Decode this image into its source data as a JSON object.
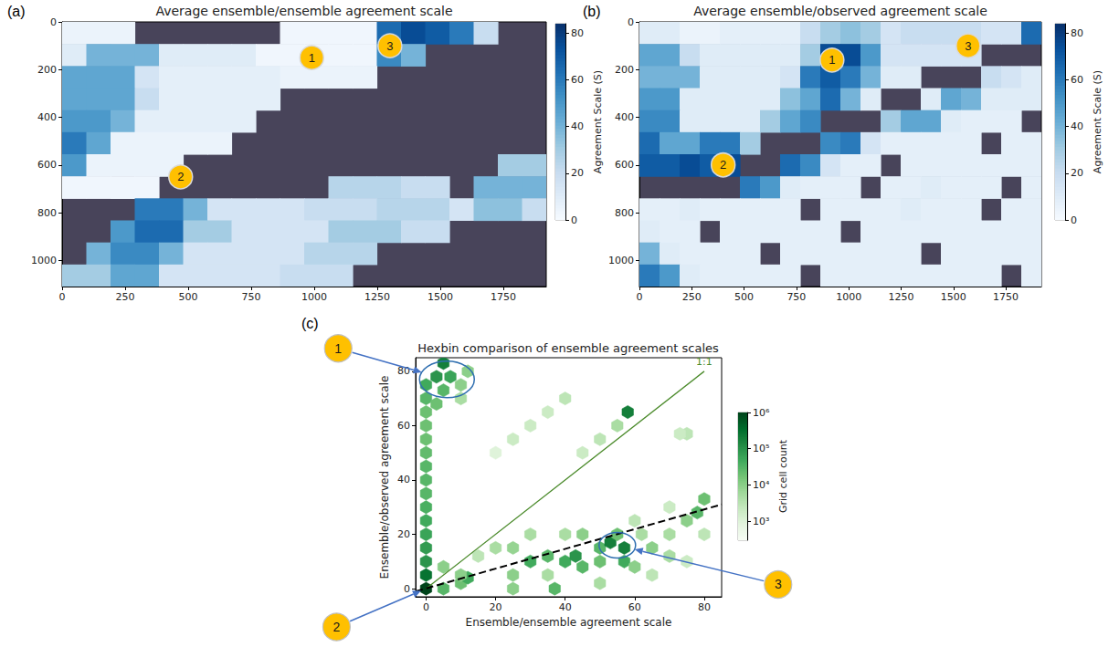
{
  "chart_data": [
    {
      "type": "heatmap",
      "label": "(a)",
      "title": "Average ensemble/ensemble agreement scale",
      "xlim": [
        0,
        1920
      ],
      "ylim": [
        1110,
        0
      ],
      "xticks": [
        0,
        250,
        500,
        750,
        1000,
        1250,
        1500,
        1750
      ],
      "yticks": [
        0,
        200,
        400,
        600,
        800,
        1000
      ],
      "grid": false,
      "cells": [
        [
          5,
          5,
          5,
          null,
          null,
          null,
          null,
          null,
          null,
          3,
          3,
          3,
          3,
          65,
          75,
          70,
          60,
          20,
          null,
          null
        ],
        [
          10,
          40,
          40,
          40,
          10,
          10,
          10,
          10,
          3,
          3,
          3,
          3,
          3,
          55,
          40,
          null,
          null,
          null,
          null,
          null
        ],
        [
          45,
          45,
          45,
          15,
          8,
          8,
          8,
          8,
          8,
          5,
          5,
          5,
          5,
          null,
          null,
          null,
          null,
          null,
          null,
          null
        ],
        [
          45,
          45,
          45,
          20,
          8,
          8,
          8,
          8,
          8,
          null,
          null,
          null,
          null,
          null,
          null,
          null,
          null,
          null,
          null,
          null
        ],
        [
          50,
          50,
          40,
          8,
          8,
          8,
          8,
          8,
          null,
          null,
          null,
          null,
          null,
          null,
          null,
          null,
          null,
          null,
          null,
          null
        ],
        [
          60,
          45,
          5,
          5,
          5,
          5,
          5,
          null,
          null,
          null,
          null,
          null,
          null,
          null,
          null,
          null,
          null,
          null,
          null,
          null
        ],
        [
          50,
          5,
          5,
          5,
          5,
          null,
          null,
          null,
          null,
          null,
          null,
          null,
          null,
          null,
          null,
          null,
          null,
          null,
          30,
          30
        ],
        [
          3,
          3,
          3,
          3,
          null,
          null,
          null,
          null,
          null,
          null,
          null,
          25,
          25,
          25,
          20,
          20,
          null,
          40,
          40,
          40
        ],
        [
          null,
          null,
          null,
          60,
          60,
          40,
          15,
          15,
          15,
          15,
          20,
          20,
          20,
          25,
          25,
          25,
          15,
          35,
          35,
          20
        ],
        [
          null,
          null,
          50,
          65,
          65,
          30,
          30,
          15,
          15,
          15,
          15,
          30,
          30,
          30,
          20,
          20,
          null,
          null,
          null,
          null
        ],
        [
          null,
          40,
          55,
          55,
          40,
          15,
          15,
          15,
          15,
          15,
          25,
          25,
          25,
          null,
          null,
          null,
          null,
          null,
          null,
          null
        ],
        [
          30,
          30,
          45,
          45,
          15,
          15,
          15,
          15,
          15,
          20,
          20,
          20,
          null,
          null,
          null,
          null,
          null,
          null,
          null,
          null
        ]
      ],
      "colorbar": {
        "label": "Agreement Scale (S)",
        "lim": [
          0,
          84
        ],
        "ticks": [
          0,
          20,
          40,
          60,
          80
        ]
      },
      "annotations": [
        {
          "text": "1",
          "x": 990,
          "y": 150
        },
        {
          "text": "2",
          "x": 470,
          "y": 650
        },
        {
          "text": "3",
          "x": 1300,
          "y": 100
        }
      ]
    },
    {
      "type": "heatmap",
      "label": "(b)",
      "title": "Average ensemble/observed agreement scale",
      "xlim": [
        0,
        1920
      ],
      "ylim": [
        1110,
        0
      ],
      "xticks": [
        0,
        250,
        500,
        750,
        1000,
        1250,
        1500,
        1750
      ],
      "yticks": [
        0,
        200,
        400,
        600,
        800,
        1000
      ],
      "grid": false,
      "cells": [
        [
          10,
          10,
          5,
          5,
          8,
          8,
          8,
          8,
          20,
          30,
          35,
          30,
          15,
          20,
          20,
          20,
          20,
          15,
          15,
          65
        ],
        [
          45,
          45,
          20,
          10,
          10,
          10,
          10,
          10,
          30,
          75,
          75,
          50,
          15,
          15,
          15,
          15,
          15,
          null,
          null,
          null
        ],
        [
          40,
          40,
          40,
          10,
          10,
          10,
          10,
          15,
          60,
          70,
          60,
          40,
          10,
          10,
          null,
          null,
          null,
          20,
          15,
          10
        ],
        [
          50,
          50,
          10,
          10,
          10,
          10,
          10,
          35,
          45,
          65,
          40,
          10,
          null,
          null,
          10,
          45,
          40,
          10,
          10,
          10
        ],
        [
          55,
          55,
          10,
          10,
          10,
          10,
          30,
          45,
          55,
          null,
          null,
          null,
          30,
          45,
          45,
          10,
          8,
          8,
          8,
          null
        ],
        [
          65,
          45,
          45,
          60,
          60,
          30,
          null,
          null,
          null,
          55,
          60,
          15,
          8,
          8,
          8,
          8,
          8,
          null,
          8,
          8
        ],
        [
          70,
          70,
          75,
          70,
          75,
          null,
          null,
          65,
          55,
          15,
          8,
          8,
          null,
          8,
          8,
          8,
          8,
          8,
          8,
          8
        ],
        [
          null,
          null,
          null,
          null,
          null,
          60,
          50,
          10,
          8,
          8,
          8,
          null,
          8,
          8,
          10,
          8,
          8,
          8,
          null,
          8
        ],
        [
          8,
          8,
          10,
          8,
          8,
          8,
          8,
          8,
          null,
          8,
          8,
          8,
          8,
          10,
          8,
          8,
          8,
          null,
          8,
          8
        ],
        [
          10,
          8,
          8,
          null,
          8,
          8,
          8,
          8,
          8,
          8,
          null,
          8,
          8,
          8,
          8,
          8,
          8,
          8,
          8,
          8
        ],
        [
          40,
          10,
          8,
          8,
          8,
          8,
          null,
          8,
          8,
          8,
          8,
          8,
          8,
          8,
          null,
          8,
          8,
          8,
          8,
          8
        ],
        [
          60,
          50,
          10,
          8,
          8,
          8,
          8,
          8,
          null,
          8,
          8,
          8,
          8,
          8,
          8,
          8,
          8,
          8,
          null,
          8
        ]
      ],
      "colorbar": {
        "label": "Agreement Scale (S)",
        "lim": [
          0,
          84
        ],
        "ticks": [
          0,
          20,
          40,
          60,
          80
        ]
      },
      "annotations": [
        {
          "text": "1",
          "x": 920,
          "y": 160
        },
        {
          "text": "2",
          "x": 400,
          "y": 600
        },
        {
          "text": "3",
          "x": 1570,
          "y": 100
        }
      ]
    },
    {
      "type": "hexbin",
      "label": "(c)",
      "title": "Hexbin comparison of ensemble agreement scales",
      "x_label": "Ensemble/ensemble agreement scale",
      "y_label": "Ensemble/observed agreement scale",
      "xlim": [
        -3,
        85
      ],
      "ylim": [
        -3,
        85
      ],
      "xticks": [
        0,
        20,
        40,
        60,
        80
      ],
      "yticks": [
        0,
        20,
        40,
        60,
        80
      ],
      "grid": false,
      "x": [
        0,
        0,
        0,
        0,
        0,
        0,
        0,
        0,
        0,
        0,
        0,
        0,
        0,
        0,
        0,
        0,
        3,
        5,
        7,
        5,
        10,
        10,
        12,
        3,
        20,
        25,
        30,
        35,
        40,
        45,
        50,
        55,
        58,
        75,
        5,
        10,
        12,
        25,
        37,
        50,
        25,
        30,
        35,
        40,
        43,
        45,
        50,
        53,
        57,
        57,
        55,
        60,
        65,
        70,
        75,
        78,
        80,
        30,
        40,
        60,
        70,
        20,
        15,
        10,
        5,
        45,
        35,
        65,
        75,
        70,
        80,
        50,
        62,
        25,
        73
      ],
      "y": [
        0,
        5,
        10,
        15,
        20,
        25,
        30,
        35,
        40,
        45,
        50,
        55,
        60,
        65,
        70,
        75,
        78,
        83,
        78,
        73,
        75,
        70,
        80,
        68,
        50,
        55,
        60,
        65,
        70,
        50,
        55,
        60,
        65,
        57,
        0,
        2,
        4,
        0,
        0,
        2,
        5,
        10,
        12,
        10,
        12,
        8,
        15,
        17,
        15,
        10,
        20,
        8,
        15,
        20,
        25,
        28,
        33,
        20,
        20,
        25,
        30,
        15,
        12,
        5,
        8,
        20,
        5,
        5,
        10,
        12,
        20,
        10,
        20,
        15,
        57
      ],
      "counts": [
        1000000,
        300000,
        100000,
        80000,
        60000,
        50000,
        40000,
        30000,
        30000,
        30000,
        25000,
        20000,
        20000,
        20000,
        30000,
        50000,
        100000,
        200000,
        60000,
        30000,
        10000,
        5000,
        10000,
        20000,
        1000,
        2000,
        2000,
        2000,
        3000,
        2000,
        3000,
        5000,
        200000,
        3000,
        30000,
        20000,
        50000,
        10000,
        30000,
        5000,
        10000,
        50000,
        30000,
        50000,
        100000,
        30000,
        30000,
        200000,
        200000,
        50000,
        20000,
        10000,
        10000,
        5000,
        10000,
        30000,
        20000,
        5000,
        5000,
        3000,
        2000,
        5000,
        3000,
        10000,
        10000,
        10000,
        5000,
        3000,
        2000,
        5000,
        3000,
        20000,
        5000,
        8000,
        2000
      ],
      "colorbar": {
        "label": "Grid cell count",
        "log": true,
        "lim": [
          300,
          1000000
        ],
        "ticks": [
          {
            "value": 1000,
            "label": "10³"
          },
          {
            "value": 10000,
            "label": "10⁴"
          },
          {
            "value": 100000,
            "label": "10⁵"
          },
          {
            "value": 1000000,
            "label": "10⁶"
          }
        ]
      },
      "lines": [
        {
          "label": "1:1",
          "color": "#4a8a2a",
          "line_style": "solid",
          "x": [
            0,
            80
          ],
          "y": [
            0,
            80
          ]
        },
        {
          "color": "#000000",
          "line_style": "dashed",
          "x": [
            -3,
            85
          ],
          "y": [
            -1,
            31
          ]
        }
      ],
      "annotations": [
        {
          "text": "1",
          "x": 6,
          "y": 77
        },
        {
          "text": "2",
          "x": 0,
          "y": 0
        },
        {
          "text": "3",
          "x": 55,
          "y": 16
        }
      ]
    }
  ]
}
